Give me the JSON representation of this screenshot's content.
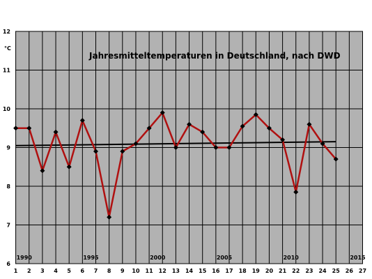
{
  "chart_data": {
    "type": "line",
    "title": "Jahresmitteltemperaturen in Deutschland, nach DWD",
    "ylabel": "°C",
    "xlabel": "",
    "xlim": [
      1,
      27
    ],
    "ylim": [
      6,
      12
    ],
    "grid": true,
    "x_ticks": [
      1,
      2,
      3,
      4,
      5,
      6,
      7,
      8,
      9,
      10,
      11,
      12,
      13,
      14,
      15,
      16,
      17,
      18,
      19,
      20,
      21,
      22,
      23,
      24,
      25,
      26,
      27
    ],
    "y_ticks": [
      6,
      7,
      8,
      9,
      10,
      11,
      12
    ],
    "year_labels": [
      {
        "x": 1,
        "text": "1990"
      },
      {
        "x": 6,
        "text": "1995"
      },
      {
        "x": 11,
        "text": "2000"
      },
      {
        "x": 16,
        "text": "2005"
      },
      {
        "x": 21,
        "text": "2010"
      },
      {
        "x": 26,
        "text": "2015"
      }
    ],
    "series": [
      {
        "x": [
          1,
          2,
          3,
          4,
          5,
          6,
          7,
          8,
          9,
          10,
          11,
          12,
          13,
          14,
          15,
          16,
          17,
          18,
          19,
          20,
          21,
          22,
          23,
          24,
          25
        ],
        "values": [
          9.5,
          9.5,
          8.4,
          9.4,
          8.5,
          9.7,
          8.9,
          7.2,
          8.9,
          9.1,
          9.5,
          9.9,
          9.0,
          9.6,
          9.4,
          9.0,
          9.0,
          9.55,
          9.85,
          9.5,
          9.2,
          7.85,
          9.6,
          9.1,
          8.7
        ],
        "color": "#b01010"
      }
    ],
    "trend": {
      "x": [
        1,
        25
      ],
      "values": [
        9.05,
        9.15
      ],
      "color": "#000000"
    },
    "colors": {
      "plot_background": "#b2b2b2",
      "grid": "#000000",
      "marker": "#000000"
    }
  }
}
